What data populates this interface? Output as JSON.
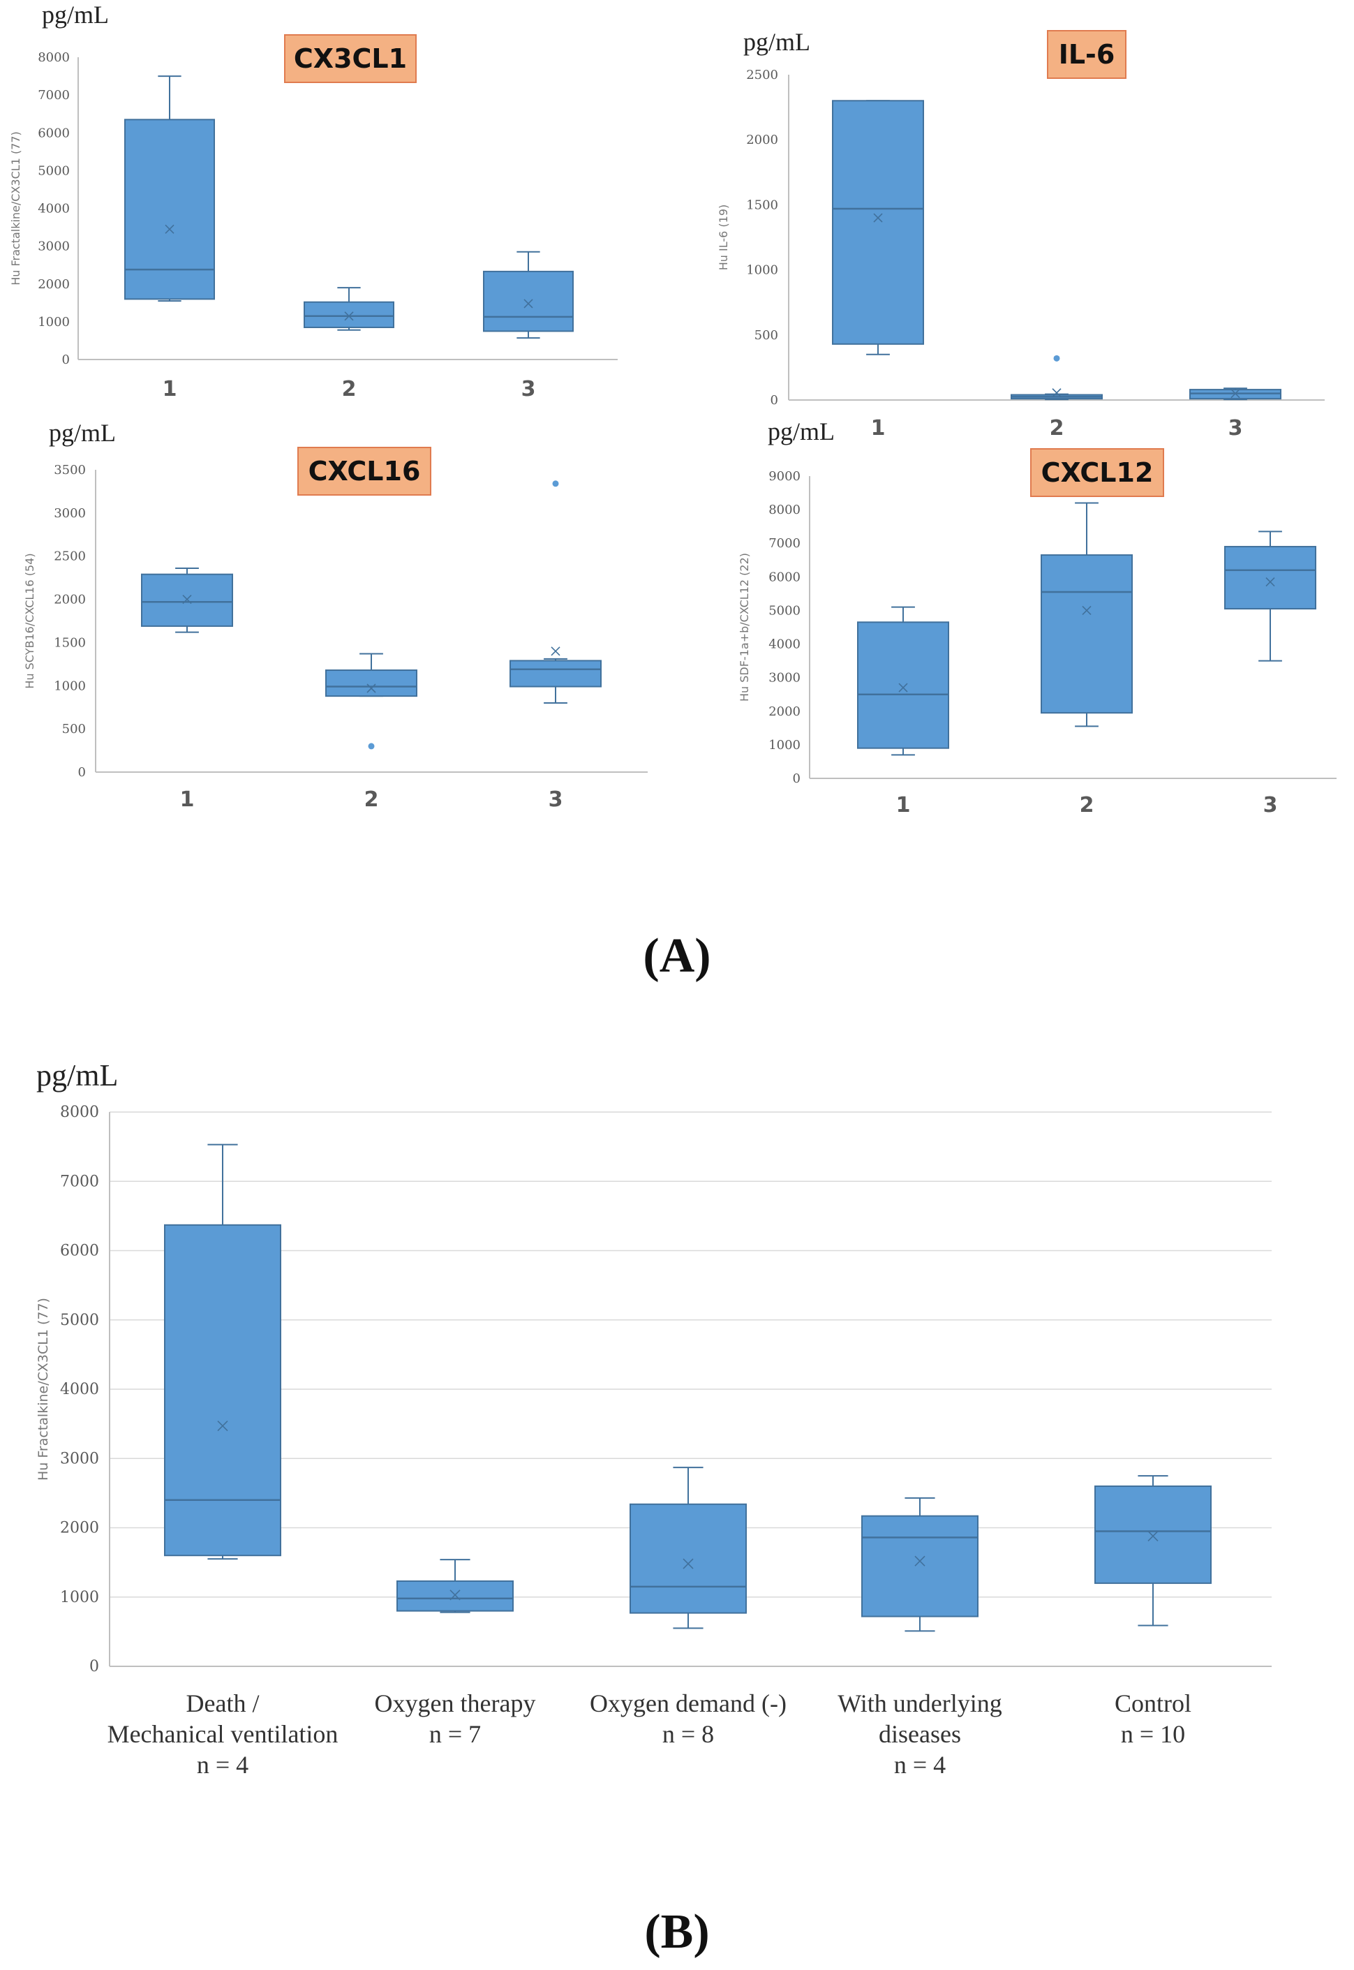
{
  "panel_a_label": "(A)",
  "panel_b_label": "(B)",
  "colors": {
    "box_fill": "#5b9bd5",
    "box_edge": "#41719c",
    "title_bg": "#f4b183",
    "title_edge": "#e07b4f",
    "axis": "#bfbfbf",
    "grid": "#d9d9d9"
  },
  "chart_data": [
    {
      "id": "cx3cl1",
      "type": "box",
      "title": "CX3CL1",
      "unit": "pg/mL",
      "ylabel": "Hu Fractalkine/CX3CL1 (77)",
      "ylim": [
        0,
        8000
      ],
      "yticks": [
        0,
        1000,
        2000,
        3000,
        4000,
        5000,
        6000,
        7000,
        8000
      ],
      "categories": [
        "1",
        "2",
        "3"
      ],
      "boxes": [
        {
          "min": 1550,
          "q1": 1600,
          "median": 2380,
          "q3": 6350,
          "max": 7500,
          "mean": 3450,
          "outliers": []
        },
        {
          "min": 780,
          "q1": 850,
          "median": 1150,
          "q3": 1520,
          "max": 1900,
          "mean": 1150,
          "outliers": []
        },
        {
          "min": 570,
          "q1": 750,
          "median": 1130,
          "q3": 2330,
          "max": 2850,
          "mean": 1480,
          "outliers": []
        }
      ]
    },
    {
      "id": "il6",
      "type": "box",
      "title": "IL-6",
      "unit": "pg/mL",
      "ylabel": "Hu IL-6 (19)",
      "ylim": [
        0,
        2500
      ],
      "yticks": [
        0,
        500,
        1000,
        1500,
        2000,
        2500
      ],
      "categories": [
        "1",
        "2",
        "3"
      ],
      "boxes": [
        {
          "min": 350,
          "q1": 430,
          "median": 1470,
          "q3": 2300,
          "max": 2300,
          "mean": 1400,
          "outliers": []
        },
        {
          "min": 5,
          "q1": 10,
          "median": 25,
          "q3": 40,
          "max": 45,
          "mean": 55,
          "outliers": [
            320
          ]
        },
        {
          "min": 5,
          "q1": 10,
          "median": 50,
          "q3": 80,
          "max": 90,
          "mean": 50,
          "outliers": []
        }
      ]
    },
    {
      "id": "cxcl16",
      "type": "box",
      "title": "CXCL16",
      "unit": "pg/mL",
      "ylabel": "Hu SCYB16/CXCL16 (54)",
      "ylim": [
        0,
        3500
      ],
      "yticks": [
        0,
        500,
        1000,
        1500,
        2000,
        2500,
        3000,
        3500
      ],
      "categories": [
        "1",
        "2",
        "3"
      ],
      "boxes": [
        {
          "min": 1620,
          "q1": 1690,
          "median": 1970,
          "q3": 2290,
          "max": 2360,
          "mean": 2000,
          "outliers": []
        },
        {
          "min": 880,
          "q1": 880,
          "median": 990,
          "q3": 1180,
          "max": 1370,
          "mean": 970,
          "outliers": [
            300
          ]
        },
        {
          "min": 800,
          "q1": 990,
          "median": 1190,
          "q3": 1290,
          "max": 1310,
          "mean": 1400,
          "outliers": [
            3340
          ]
        }
      ]
    },
    {
      "id": "cxcl12",
      "type": "box",
      "title": "CXCL12",
      "unit": "pg/mL",
      "ylabel": "Hu SDF-1a+b/CXCL12 (22)",
      "ylim": [
        0,
        9000
      ],
      "yticks": [
        0,
        1000,
        2000,
        3000,
        4000,
        5000,
        6000,
        7000,
        8000,
        9000
      ],
      "categories": [
        "1",
        "2",
        "3"
      ],
      "boxes": [
        {
          "min": 700,
          "q1": 900,
          "median": 2500,
          "q3": 4650,
          "max": 5100,
          "mean": 2700,
          "outliers": []
        },
        {
          "min": 1550,
          "q1": 1950,
          "median": 5550,
          "q3": 6650,
          "max": 8200,
          "mean": 5000,
          "outliers": []
        },
        {
          "min": 3500,
          "q1": 5050,
          "median": 6200,
          "q3": 6900,
          "max": 7350,
          "mean": 5850,
          "outliers": []
        }
      ]
    },
    {
      "id": "cx3cl1_groups",
      "type": "box",
      "title": "",
      "unit": "pg/mL",
      "ylabel": "Hu Fractalkine/CX3CL1 (77)",
      "ylim": [
        0,
        8000
      ],
      "yticks": [
        0,
        1000,
        2000,
        3000,
        4000,
        5000,
        6000,
        7000,
        8000
      ],
      "categories": [
        [
          "Death /",
          "Mechanical ventilation",
          "n = 4"
        ],
        [
          "Oxygen therapy",
          "n = 7"
        ],
        [
          "Oxygen demand (-)",
          "n = 8"
        ],
        [
          "With underlying",
          "diseases",
          "n = 4"
        ],
        [
          "Control",
          "n = 10"
        ]
      ],
      "boxes": [
        {
          "min": 1550,
          "q1": 1600,
          "median": 2400,
          "q3": 6370,
          "max": 7530,
          "mean": 3470,
          "outliers": []
        },
        {
          "min": 780,
          "q1": 800,
          "median": 980,
          "q3": 1230,
          "max": 1540,
          "mean": 1030,
          "outliers": []
        },
        {
          "min": 550,
          "q1": 770,
          "median": 1150,
          "q3": 2340,
          "max": 2870,
          "mean": 1480,
          "outliers": []
        },
        {
          "min": 510,
          "q1": 720,
          "median": 1860,
          "q3": 2170,
          "max": 2430,
          "mean": 1520,
          "outliers": []
        },
        {
          "min": 590,
          "q1": 1200,
          "median": 1950,
          "q3": 2600,
          "max": 2750,
          "mean": 1880,
          "outliers": []
        }
      ]
    }
  ]
}
